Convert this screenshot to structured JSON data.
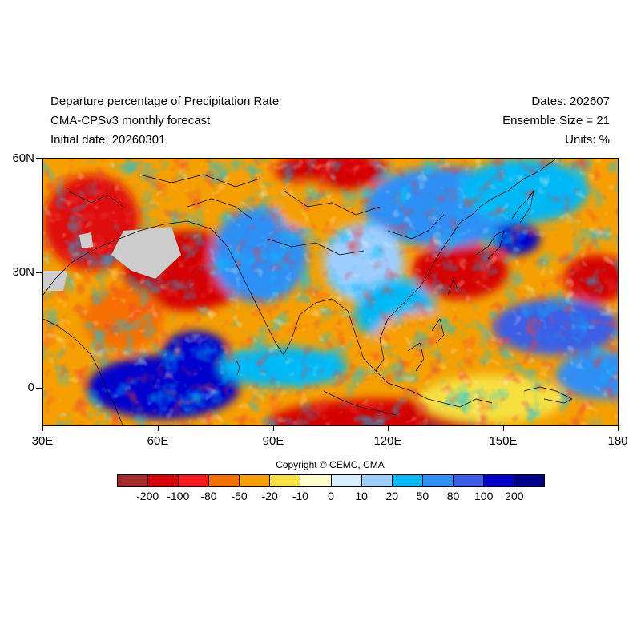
{
  "header": {
    "left_line1": "Departure percentage of Precipitation Rate",
    "left_line2": "CMA-CPSv3 monthly forecast",
    "left_line3": "Initial date: 20260301",
    "right_line1": "Dates: 202607",
    "right_line2": "Ensemble Size = 21",
    "right_line3": "Units: %"
  },
  "map": {
    "lat_labels": [
      "60N",
      "30N",
      "0"
    ],
    "lon_labels": [
      "30E",
      "60E",
      "90E",
      "120E",
      "150E",
      "180"
    ],
    "lon_range": [
      30,
      180
    ],
    "lat_range": [
      -10,
      60
    ]
  },
  "copyright": "Copyright © CEMC, CMA",
  "colorbar": {
    "colors": [
      "#a52a2a",
      "#d50000",
      "#ff1a1a",
      "#f57000",
      "#f5a000",
      "#f5e040",
      "#ffffcc",
      "#d6f0ff",
      "#9ccdff",
      "#00b8f5",
      "#2e8ff5",
      "#3b5fe6",
      "#0000cc",
      "#00008b"
    ],
    "labels": [
      "-200",
      "-100",
      "-80",
      "-50",
      "-20",
      "-10",
      "0",
      "10",
      "20",
      "50",
      "80",
      "100",
      "200"
    ]
  },
  "colors": {
    "missing_gray": "#cccccc",
    "coastline": "#000000"
  }
}
